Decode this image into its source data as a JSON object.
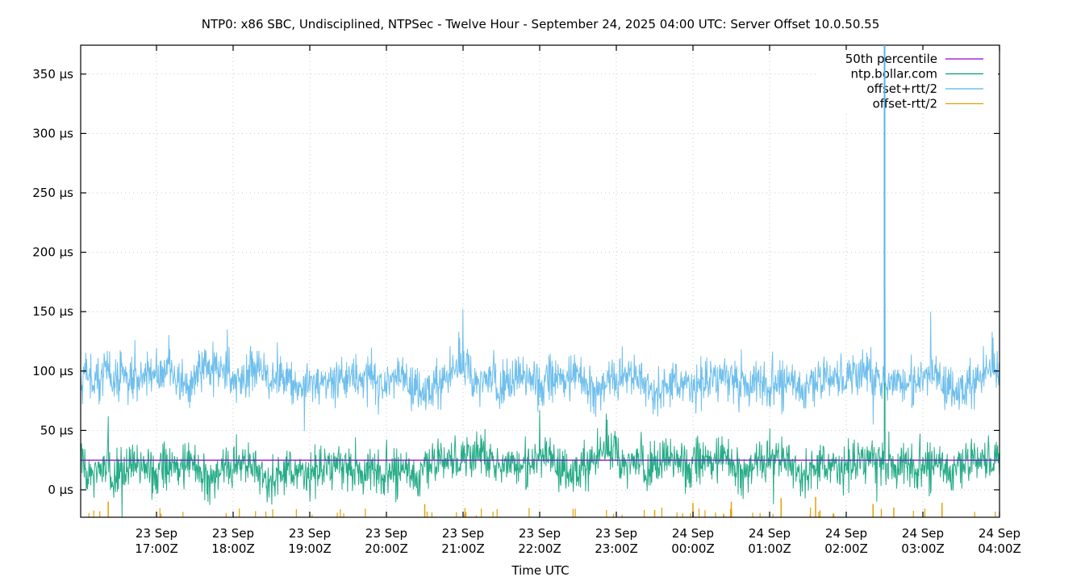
{
  "chart_data": {
    "type": "line",
    "title": "NTP0: x86 SBC, Undisciplined, NTPSec - Twelve Hour - September 24, 2025 04:00 UTC: Server Offset 10.0.50.55",
    "xlabel": "Time UTC",
    "ylabel": "",
    "ylim": [
      -23,
      375
    ],
    "xlim": [
      "23 Sep 16:01Z",
      "24 Sep 04:00Z"
    ],
    "grid": true,
    "legend_position": "top-right",
    "y_ticks": [
      {
        "value": 0,
        "label": "0 µs"
      },
      {
        "value": 50,
        "label": "50 µs"
      },
      {
        "value": 100,
        "label": "100 µs"
      },
      {
        "value": 150,
        "label": "150 µs"
      },
      {
        "value": 200,
        "label": "200 µs"
      },
      {
        "value": 250,
        "label": "250 µs"
      },
      {
        "value": 300,
        "label": "300 µs"
      },
      {
        "value": 350,
        "label": "350 µs"
      }
    ],
    "x_ticks": [
      {
        "hours": 1,
        "line1": "23 Sep",
        "line2": "17:00Z"
      },
      {
        "hours": 2,
        "line1": "23 Sep",
        "line2": "18:00Z"
      },
      {
        "hours": 3,
        "line1": "23 Sep",
        "line2": "19:00Z"
      },
      {
        "hours": 4,
        "line1": "23 Sep",
        "line2": "20:00Z"
      },
      {
        "hours": 5,
        "line1": "23 Sep",
        "line2": "21:00Z"
      },
      {
        "hours": 6,
        "line1": "23 Sep",
        "line2": "22:00Z"
      },
      {
        "hours": 7,
        "line1": "23 Sep",
        "line2": "23:00Z"
      },
      {
        "hours": 8,
        "line1": "24 Sep",
        "line2": "00:00Z"
      },
      {
        "hours": 9,
        "line1": "24 Sep",
        "line2": "01:00Z"
      },
      {
        "hours": 10,
        "line1": "24 Sep",
        "line2": "02:00Z"
      },
      {
        "hours": 11,
        "line1": "24 Sep",
        "line2": "03:00Z"
      },
      {
        "hours": 12,
        "line1": "24 Sep",
        "line2": "04:00Z"
      }
    ],
    "series": [
      {
        "name": "50th percentile",
        "color": "#9400d3",
        "kind": "constant",
        "value": 25
      },
      {
        "name": "ntp.bollar.com",
        "color": "#009e73",
        "kind": "noise",
        "baseline_segments": [
          [
            0,
            4.45,
            21
          ],
          [
            4.45,
            12,
            26
          ]
        ],
        "amplitude": 9,
        "typical_range": [
          0,
          55
        ],
        "spikes": [
          {
            "t": 0.55,
            "v": -25
          },
          {
            "t": 0.37,
            "v": 62
          },
          {
            "t": 6.0,
            "v": 67
          },
          {
            "t": 10.5,
            "v": 330
          },
          {
            "t": 10.4,
            "v": -10
          },
          {
            "t": 9.05,
            "v": -12
          }
        ]
      },
      {
        "name": "offset+rtt/2",
        "color": "#56b4e9",
        "kind": "noise",
        "baseline_segments": [
          [
            0,
            12,
            95
          ]
        ],
        "amplitude": 9,
        "typical_range": [
          70,
          135
        ],
        "spikes": [
          {
            "t": 5.0,
            "v": 152
          },
          {
            "t": 8.6,
            "v": 65
          },
          {
            "t": 10.5,
            "v": 375
          },
          {
            "t": 10.35,
            "v": 55
          },
          {
            "t": 11.1,
            "v": 150
          },
          {
            "t": 1.92,
            "v": 135
          }
        ]
      },
      {
        "name": "offset-rtt/2",
        "color": "#e69f00",
        "kind": "sparse-bottom",
        "baseline_segments": [
          [
            0,
            12,
            -23
          ]
        ],
        "typical_range": [
          -23,
          -6
        ],
        "spikes": [
          {
            "t": 0.37,
            "v": -10
          },
          {
            "t": 4.5,
            "v": -12
          },
          {
            "t": 7.5,
            "v": -17
          },
          {
            "t": 8.0,
            "v": -11
          },
          {
            "t": 8.5,
            "v": -10
          },
          {
            "t": 9.15,
            "v": -7
          },
          {
            "t": 9.6,
            "v": -6
          },
          {
            "t": 10.35,
            "v": -12
          },
          {
            "t": 10.62,
            "v": -15
          },
          {
            "t": 11.25,
            "v": -11
          }
        ]
      }
    ]
  },
  "legend": {
    "items": [
      {
        "label": "50th percentile",
        "color": "#9400d3"
      },
      {
        "label": "ntp.bollar.com",
        "color": "#009e73"
      },
      {
        "label": "offset+rtt/2",
        "color": "#56b4e9"
      },
      {
        "label": "offset-rtt/2",
        "color": "#e69f00"
      }
    ]
  },
  "colors": {
    "grid": "#bbbbbb",
    "axis": "#000000"
  }
}
